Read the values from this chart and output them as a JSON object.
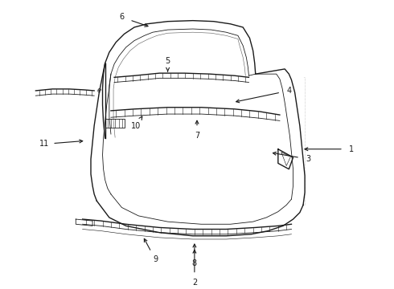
{
  "background_color": "#ffffff",
  "line_color": "#1a1a1a",
  "fig_width": 4.9,
  "fig_height": 3.6,
  "dpi": 100,
  "callouts": {
    "1": {
      "label": [
        4.3,
        1.72
      ],
      "arrow": [
        3.7,
        1.72
      ]
    },
    "2": {
      "label": [
        2.42,
        0.12
      ],
      "arrow": [
        2.42,
        0.55
      ]
    },
    "3": {
      "label": [
        3.78,
        1.6
      ],
      "arrow": [
        3.32,
        1.68
      ]
    },
    "4": {
      "label": [
        3.55,
        2.42
      ],
      "arrow": [
        2.88,
        2.28
      ]
    },
    "5": {
      "label": [
        2.1,
        2.78
      ],
      "arrow": [
        2.1,
        2.62
      ]
    },
    "6": {
      "label": [
        1.55,
        3.3
      ],
      "arrow": [
        1.9,
        3.18
      ]
    },
    "7": {
      "label": [
        2.45,
        1.88
      ],
      "arrow": [
        2.45,
        2.1
      ]
    },
    "8": {
      "label": [
        2.42,
        0.35
      ],
      "arrow": [
        2.42,
        0.62
      ]
    },
    "9": {
      "label": [
        1.95,
        0.4
      ],
      "arrow": [
        1.8,
        0.68
      ]
    },
    "10": {
      "label": [
        1.72,
        2.0
      ],
      "arrow": [
        1.8,
        2.12
      ]
    },
    "11": {
      "label": [
        0.62,
        1.78
      ],
      "arrow": [
        1.12,
        1.82
      ]
    }
  }
}
